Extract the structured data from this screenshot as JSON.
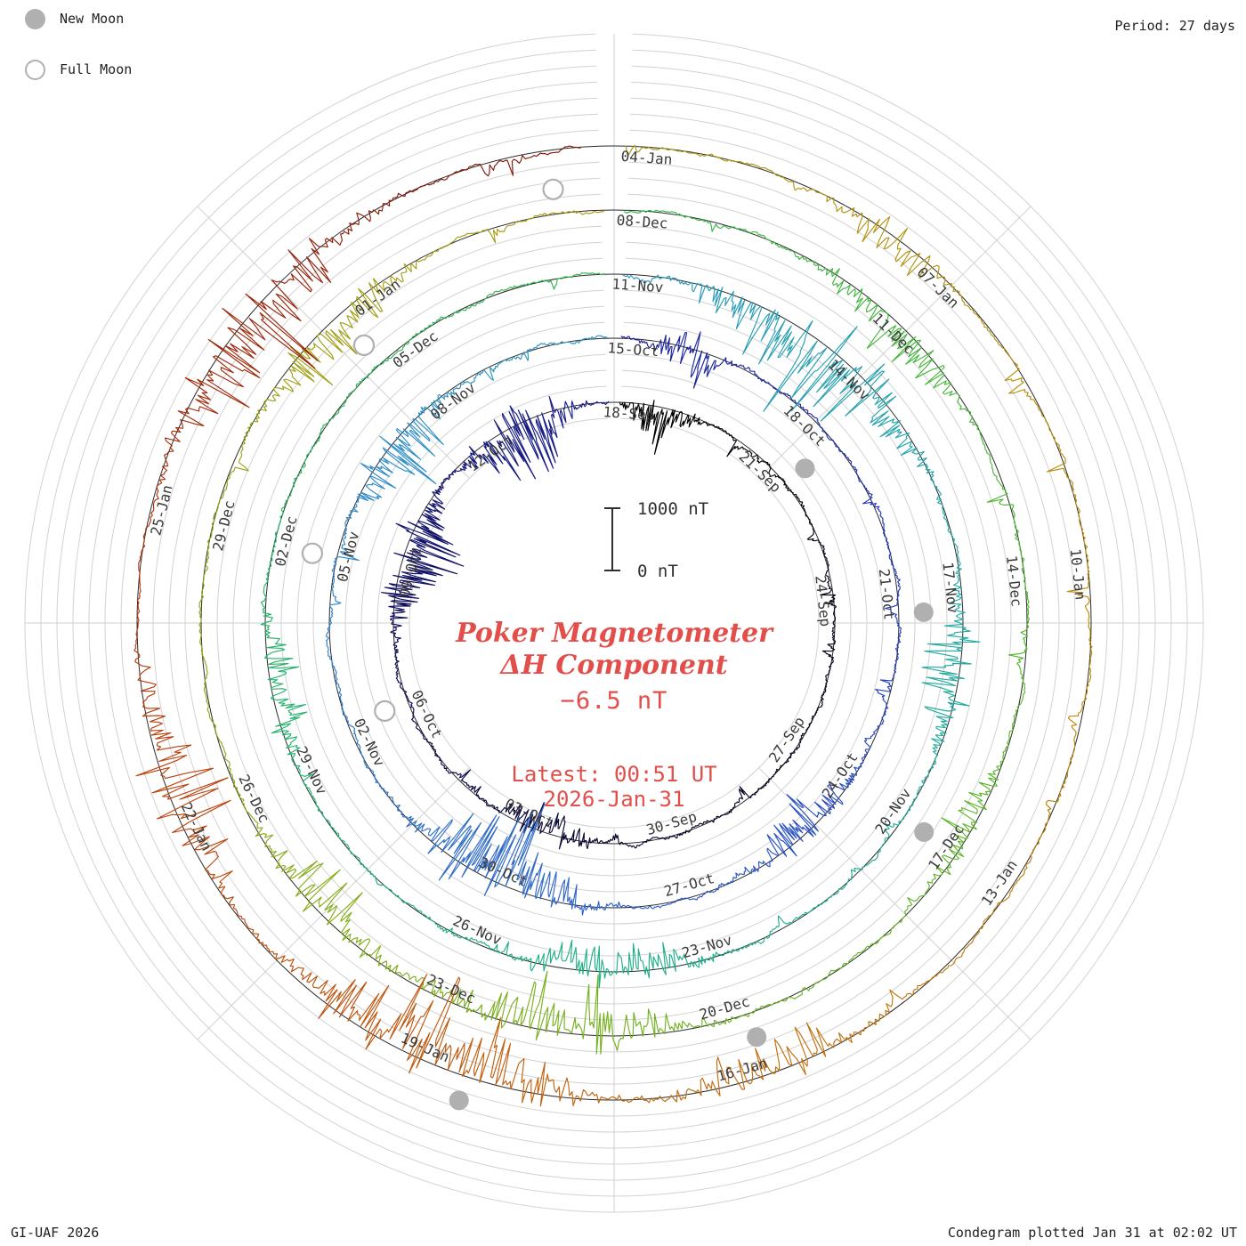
{
  "meta": {
    "period_label": "Period: 27 days",
    "credit": "GI-UAF 2026",
    "plotted": "Condegram plotted Jan 31 at 02:02 UT"
  },
  "legend": {
    "new_moon": "New Moon",
    "full_moon": "Full Moon"
  },
  "center": {
    "title_line1": "Poker Magnetometer",
    "title_line2": "ΔH Component",
    "value": "−6.5 nT",
    "latest_line1": "Latest: 00:51 UT",
    "latest_line2": "2026-Jan-31"
  },
  "scale_bar": {
    "top": "1000 nT",
    "bottom": "0 nT"
  },
  "chart_data": {
    "type": "spiral_condegram",
    "station": "Poker Magnetometer",
    "component": "ΔH",
    "latest_value_nT": -6.5,
    "latest_time": "00:51 UT",
    "latest_date": "2026-Jan-31",
    "period_days": 27,
    "label_step_days": 3,
    "label_angle_step_deg": 40,
    "scale_bar_nT": [
      0,
      1000
    ],
    "colors": {
      "text_red": "#e24f4a",
      "grid": "#d2d2d2",
      "baseline": "#2b2b2b",
      "moon_gray": "#b0b0b0",
      "date_label": "#3a3a3a"
    },
    "rings": [
      {
        "labels": [
          "18-Sep",
          "21-Sep",
          "24-Sep",
          "27-Sep",
          "30-Sep",
          "03-Oct",
          "06-Oct",
          "09-Oct",
          "12-Oct"
        ]
      },
      {
        "labels": [
          "15-Oct",
          "18-Oct",
          "21-Oct",
          "24-Oct",
          "27-Oct",
          "30-Oct",
          "02-Nov",
          "05-Nov",
          "08-Nov"
        ]
      },
      {
        "labels": [
          "11-Nov",
          "14-Nov",
          "17-Nov",
          "20-Nov",
          "23-Nov",
          "26-Nov",
          "29-Nov",
          "02-Dec",
          "05-Dec"
        ]
      },
      {
        "labels": [
          "08-Dec",
          "11-Dec",
          "14-Dec",
          "17-Dec",
          "20-Dec",
          "23-Dec",
          "26-Dec",
          "29-Dec",
          "01-Jan"
        ]
      },
      {
        "labels": [
          "04-Jan",
          "07-Jan",
          "10-Jan",
          "13-Jan",
          "16-Jan",
          "19-Jan",
          "22-Jan",
          "25-Jan"
        ]
      }
    ],
    "new_moons": [
      {
        "ring_index": 0,
        "angle_deg": 51
      },
      {
        "ring_index": 1,
        "angle_deg": 88
      },
      {
        "ring_index": 2,
        "angle_deg": 124
      },
      {
        "ring_index": 3,
        "angle_deg": 161
      },
      {
        "ring_index": 4,
        "angle_deg": 198
      }
    ],
    "full_moons": [
      {
        "ring_index": 0,
        "angle_deg": 249
      },
      {
        "ring_index": 1,
        "angle_deg": 283
      },
      {
        "ring_index": 2,
        "angle_deg": 318
      },
      {
        "ring_index": 3,
        "angle_deg": 352
      }
    ],
    "color_stops": [
      [
        0.0,
        "#000000"
      ],
      [
        0.1,
        "#06062c"
      ],
      [
        0.17,
        "#12126e"
      ],
      [
        0.23,
        "#2130b6"
      ],
      [
        0.3,
        "#2f62c6"
      ],
      [
        0.37,
        "#2f8cc8"
      ],
      [
        0.44,
        "#27a8a8"
      ],
      [
        0.51,
        "#20b284"
      ],
      [
        0.58,
        "#2cb456"
      ],
      [
        0.65,
        "#52b82e"
      ],
      [
        0.72,
        "#81ae1a"
      ],
      [
        0.79,
        "#a89c12"
      ],
      [
        0.85,
        "#bd8a10"
      ],
      [
        0.9,
        "#c2680f"
      ],
      [
        0.95,
        "#b83a0e"
      ],
      [
        1.0,
        "#7a140a"
      ]
    ]
  }
}
